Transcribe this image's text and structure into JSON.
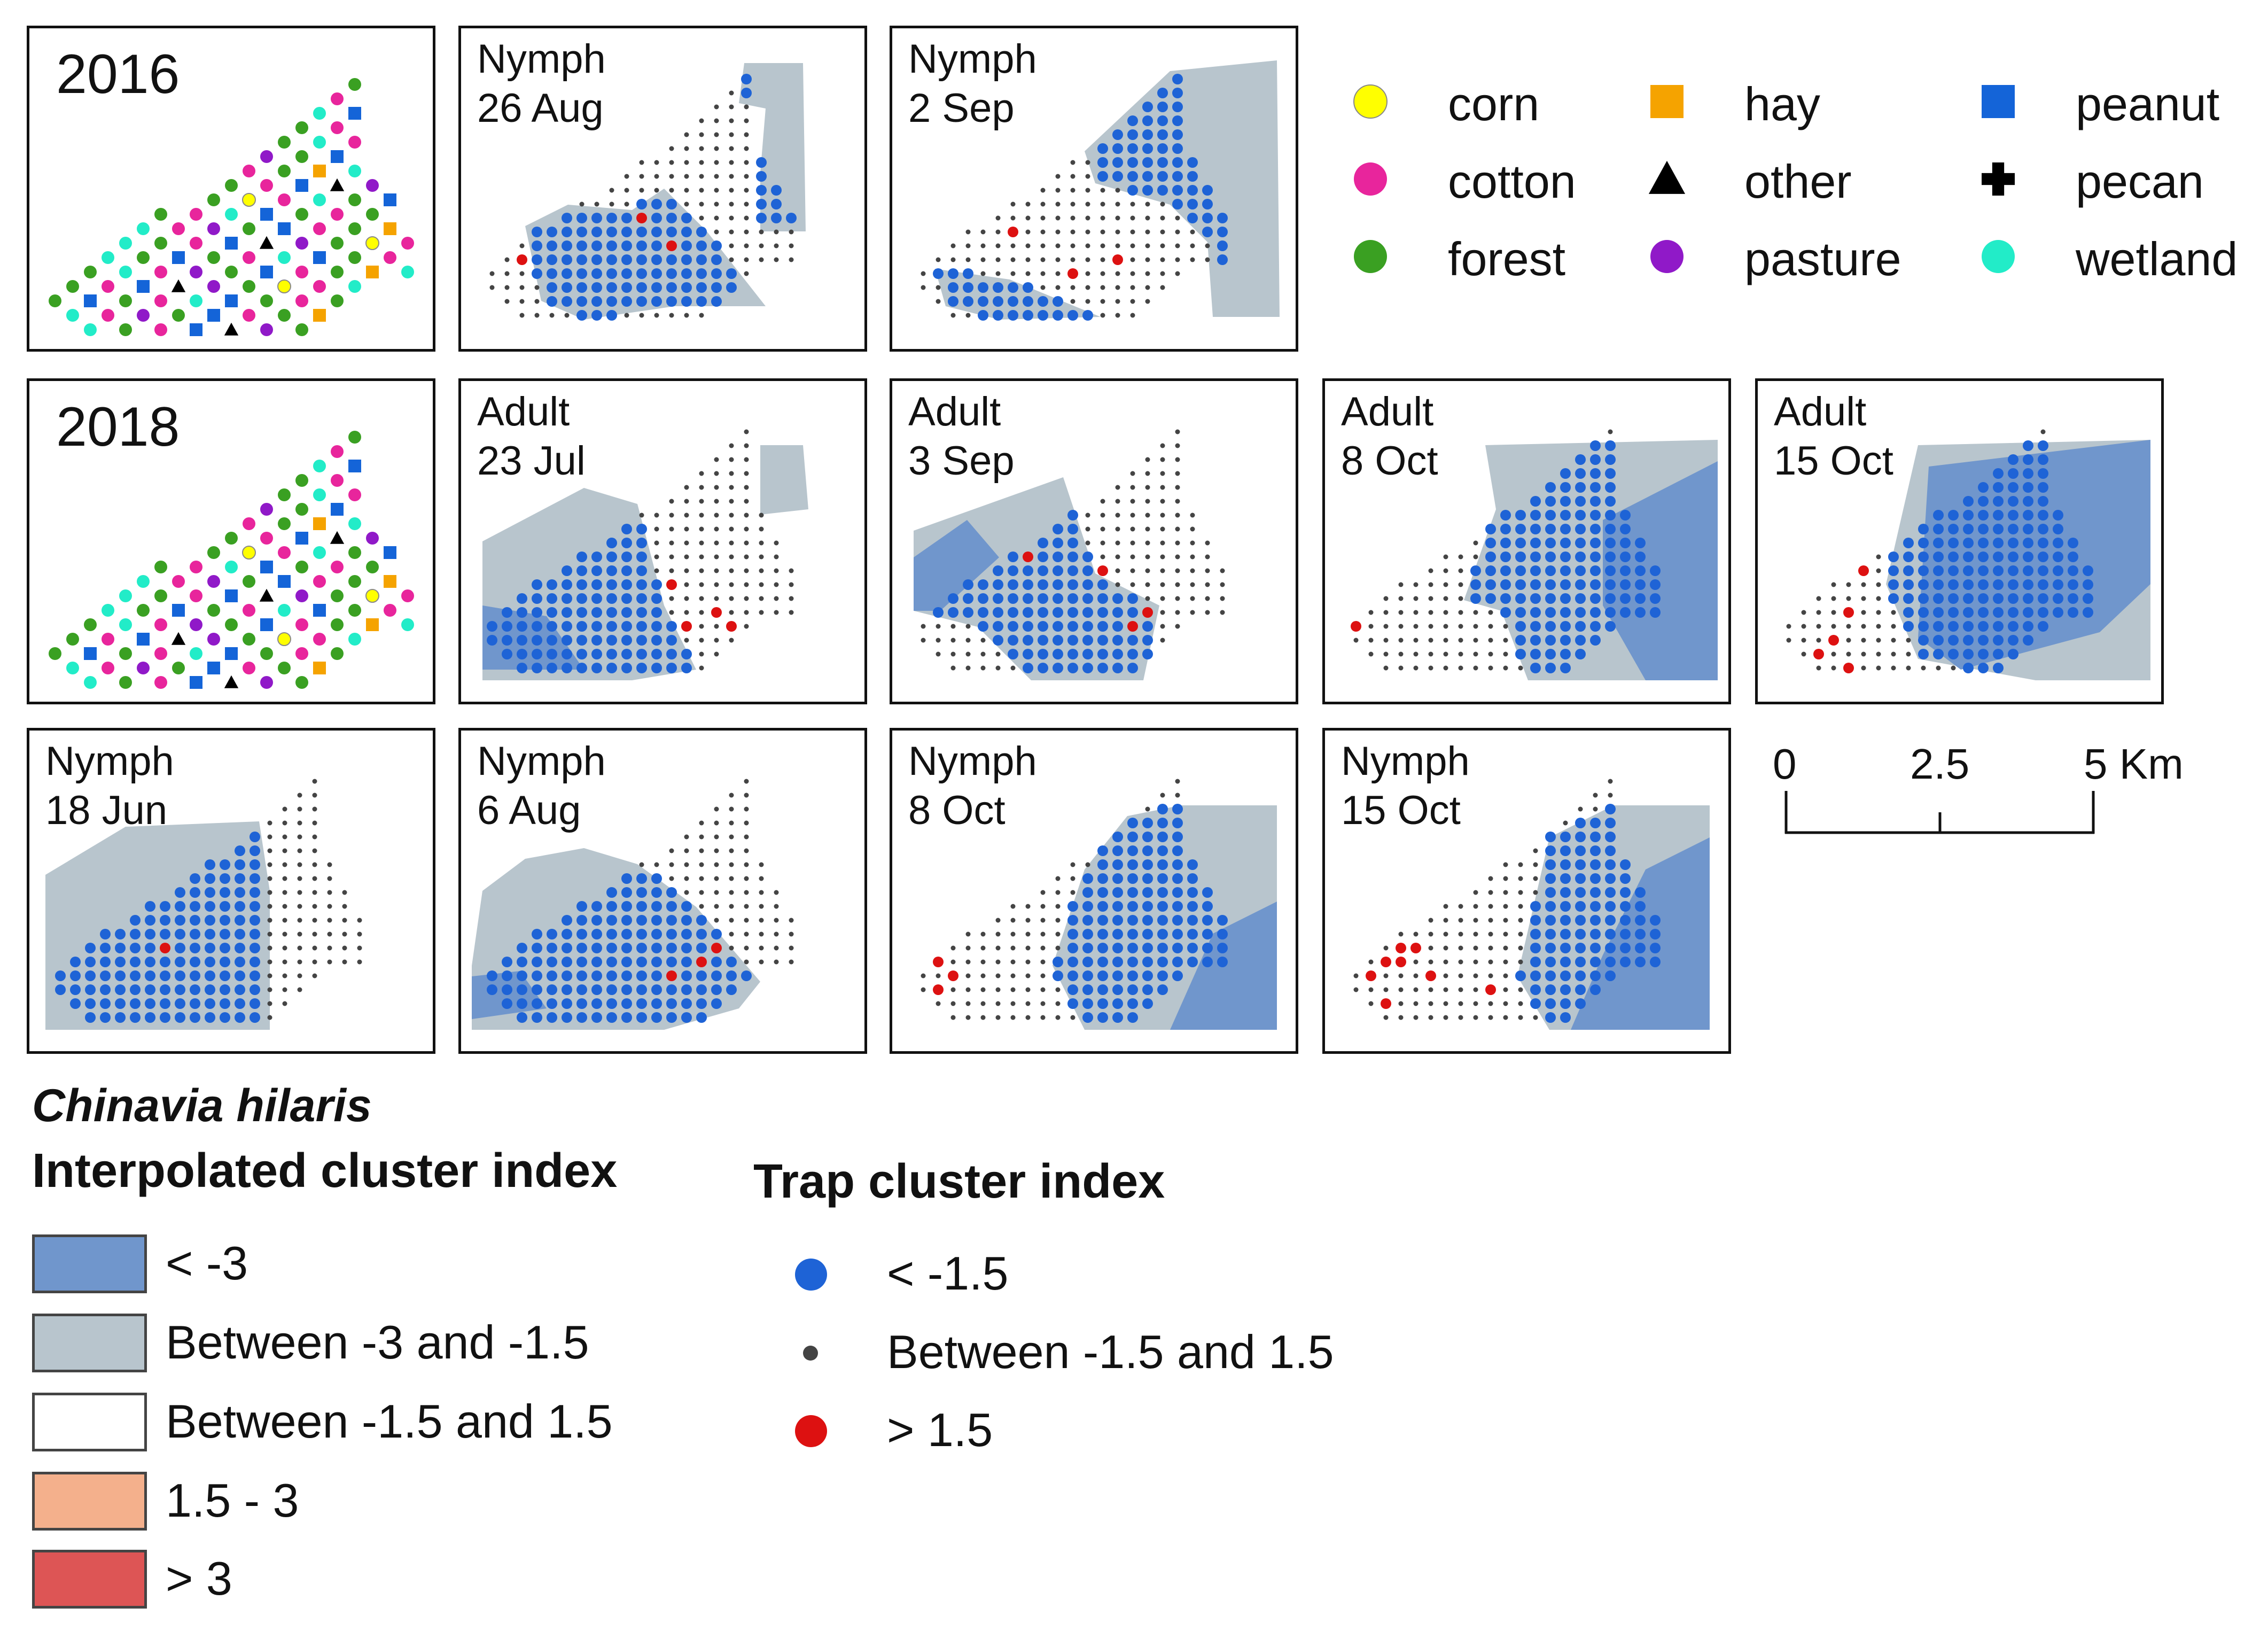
{
  "species": "Chinavia hilaris",
  "colors": {
    "dense": "#7096cc",
    "gray": "#b8c5cd",
    "blue_dot": "#1e63d6",
    "small_dot": "#444444",
    "red_dot": "#dd1111",
    "orange": "#f4b08c",
    "red_area": "#dd5555"
  },
  "landuse_legend": [
    {
      "label": "corn",
      "shape": "circle",
      "color": "#ffff00"
    },
    {
      "label": "hay",
      "shape": "square",
      "color": "#f5a300"
    },
    {
      "label": "peanut",
      "shape": "square",
      "color": "#1464d8"
    },
    {
      "label": "cotton",
      "shape": "circle",
      "color": "#e8259c"
    },
    {
      "label": "other",
      "shape": "triangle",
      "color": "#000000"
    },
    {
      "label": "pecan",
      "shape": "cross",
      "color": "#000000"
    },
    {
      "label": "forest",
      "shape": "circle",
      "color": "#3aa022"
    },
    {
      "label": "pasture",
      "shape": "circle",
      "color": "#9019c8"
    },
    {
      "label": "wetland",
      "shape": "circle",
      "color": "#22ecc8"
    }
  ],
  "panels": [
    {
      "type": "landuse",
      "year": "2016"
    },
    {
      "type": "trap",
      "stage": "Nymph",
      "date": "26 Aug"
    },
    {
      "type": "trap",
      "stage": "Nymph",
      "date": "2 Sep"
    },
    {
      "type": "landuse",
      "year": "2018"
    },
    {
      "type": "trap",
      "stage": "Adult",
      "date": "23 Jul"
    },
    {
      "type": "trap",
      "stage": "Adult",
      "date": "3 Sep"
    },
    {
      "type": "trap",
      "stage": "Adult",
      "date": "8 Oct"
    },
    {
      "type": "trap",
      "stage": "Adult",
      "date": "15 Oct"
    },
    {
      "type": "trap",
      "stage": "Nymph",
      "date": "18 Jun"
    },
    {
      "type": "trap",
      "stage": "Nymph",
      "date": "6 Aug"
    },
    {
      "type": "trap",
      "stage": "Nymph",
      "date": "8 Oct"
    },
    {
      "type": "trap",
      "stage": "Nymph",
      "date": "15 Oct"
    }
  ],
  "scale_bar": {
    "labels": [
      "0",
      "2.5",
      "5 Km"
    ]
  },
  "interpolated_legend": {
    "title": "Interpolated cluster index",
    "items": [
      {
        "label": "< -3",
        "color": "#7096cc"
      },
      {
        "label": "Between -3 and -1.5",
        "color": "#b8c5cd"
      },
      {
        "label": "Between -1.5 and 1.5",
        "color": "#ffffff"
      },
      {
        "label": "1.5 - 3",
        "color": "#f4b08c"
      },
      {
        "label": "> 3",
        "color": "#dd5555"
      }
    ]
  },
  "trap_legend": {
    "title": "Trap cluster index",
    "items": [
      {
        "label": "< -1.5",
        "color": "#1e63d6",
        "size": "large"
      },
      {
        "label": "Between -1.5 and 1.5",
        "color": "#444444",
        "size": "small"
      },
      {
        "label": "> 1.5",
        "color": "#dd1111",
        "size": "large"
      }
    ]
  }
}
